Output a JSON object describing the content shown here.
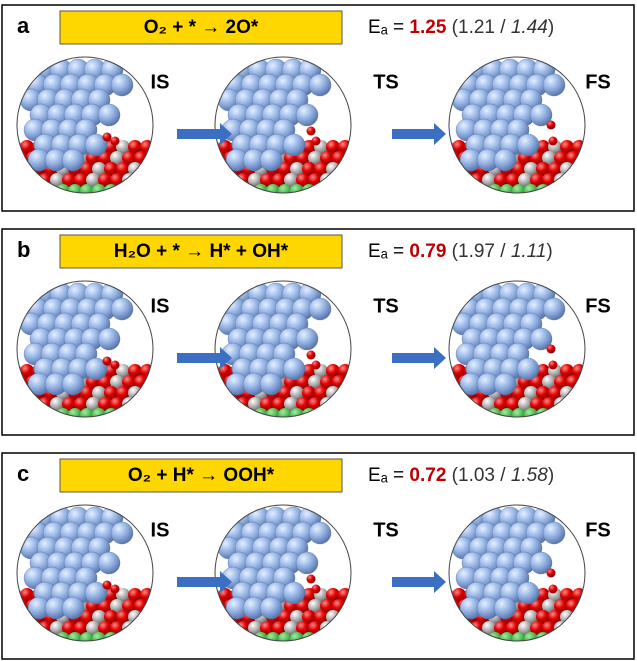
{
  "panels": [
    {
      "label": "a",
      "reaction": "O₂ + * → 2O*",
      "energy": {
        "symbol": "Eₐ =",
        "main": "1.25",
        "open": "(",
        "alt1": "1.21",
        "separator": "/",
        "alt2": "1.44",
        "close": ")"
      },
      "states": [
        "IS",
        "TS",
        "FS"
      ]
    },
    {
      "label": "b",
      "reaction": "H₂O + * → H* + OH*",
      "energy": {
        "symbol": "Eₐ =",
        "main": "0.79",
        "open": "(",
        "alt1": "1.97",
        "separator": "/",
        "alt2": "1.11",
        "close": ")"
      },
      "states": [
        "IS",
        "TS",
        "FS"
      ]
    },
    {
      "label": "c",
      "reaction": "O₂ + H* → OOH*",
      "energy": {
        "symbol": "Eₐ =",
        "main": "0.72",
        "open": "(",
        "alt1": "1.03",
        "separator": "/",
        "alt2": "1.58",
        "close": ")"
      },
      "states": [
        "IS",
        "TS",
        "FS"
      ]
    }
  ]
}
